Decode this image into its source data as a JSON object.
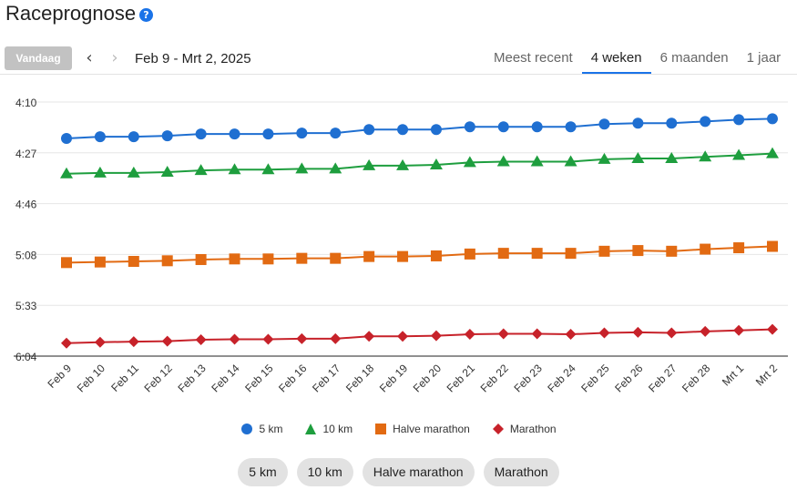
{
  "header": {
    "title": "Raceprognose",
    "help_icon": "question-circle-icon"
  },
  "toolbar": {
    "today_label": "Vandaag",
    "prev_icon": "chevron-left-icon",
    "next_icon": "chevron-right-icon",
    "date_range": "Feb 9 - Mrt 2, 2025"
  },
  "tabs": [
    {
      "label": "Meest recent",
      "active": false
    },
    {
      "label": "4 weken",
      "active": true
    },
    {
      "label": "6 maanden",
      "active": false
    },
    {
      "label": "1 jaar",
      "active": false
    }
  ],
  "colors": {
    "accent": "#1a73e8",
    "5km": "#1f6fd1",
    "10km": "#1e9e3e",
    "half": "#e26a12",
    "marathon": "#c7222a"
  },
  "chart_data": {
    "type": "line",
    "title": "",
    "xlabel": "",
    "ylabel": "",
    "y_axis_reversed": true,
    "y_ticks": [
      "4:10",
      "4:27",
      "4:46",
      "5:08",
      "5:33",
      "6:04"
    ],
    "y_tick_seconds": [
      250,
      267,
      286,
      308,
      333,
      364
    ],
    "ylim": [
      "4:10",
      "6:04"
    ],
    "categories": [
      "Feb 9",
      "Feb 10",
      "Feb 11",
      "Feb 12",
      "Feb 13",
      "Feb 14",
      "Feb 15",
      "Feb 16",
      "Feb 17",
      "Feb 18",
      "Feb 19",
      "Feb 20",
      "Feb 21",
      "Feb 22",
      "Feb 23",
      "Feb 24",
      "Feb 25",
      "Feb 26",
      "Feb 27",
      "Feb 28",
      "Mrt 1",
      "Mrt 2"
    ],
    "series": [
      {
        "name": "5 km",
        "color": "#1f6fd1",
        "marker": "circle",
        "values": [
          4.37,
          4.36,
          4.36,
          4.355,
          4.345,
          4.345,
          4.345,
          4.34,
          4.34,
          4.32,
          4.32,
          4.32,
          4.305,
          4.305,
          4.305,
          4.305,
          4.29,
          4.285,
          4.285,
          4.275,
          4.265,
          4.26
        ]
      },
      {
        "name": "10 km",
        "color": "#1e9e3e",
        "marker": "triangle",
        "values": [
          4.58,
          4.575,
          4.575,
          4.57,
          4.56,
          4.555,
          4.555,
          4.55,
          4.55,
          4.53,
          4.53,
          4.525,
          4.51,
          4.505,
          4.505,
          4.505,
          4.49,
          4.485,
          4.485,
          4.475,
          4.465,
          4.455
        ]
      },
      {
        "name": "Halve marathon",
        "color": "#e26a12",
        "marker": "square",
        "values": [
          5.2,
          5.195,
          5.19,
          5.185,
          5.175,
          5.17,
          5.17,
          5.165,
          5.165,
          5.15,
          5.15,
          5.145,
          5.13,
          5.125,
          5.125,
          5.125,
          5.11,
          5.105,
          5.11,
          5.095,
          5.085,
          5.075
        ]
      },
      {
        "name": "Marathon",
        "color": "#c7222a",
        "marker": "diamond",
        "values": [
          5.935,
          5.925,
          5.92,
          5.915,
          5.9,
          5.895,
          5.895,
          5.89,
          5.89,
          5.865,
          5.865,
          5.86,
          5.845,
          5.84,
          5.84,
          5.845,
          5.83,
          5.825,
          5.83,
          5.815,
          5.805,
          5.795
        ]
      }
    ]
  },
  "legend": [
    {
      "label": "5 km",
      "icon": "circle-marker-icon"
    },
    {
      "label": "10 km",
      "icon": "triangle-marker-icon"
    },
    {
      "label": "Halve marathon",
      "icon": "square-marker-icon"
    },
    {
      "label": "Marathon",
      "icon": "diamond-marker-icon"
    }
  ],
  "filters": [
    "5 km",
    "10 km",
    "Halve marathon",
    "Marathon"
  ]
}
